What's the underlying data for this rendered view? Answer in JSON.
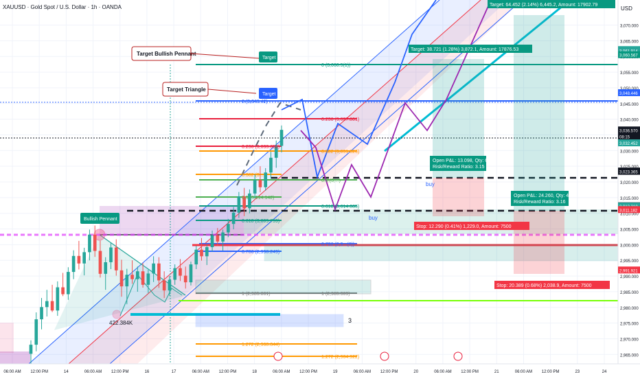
{
  "header": {
    "title": "XAUUSD · Gold Spot / U.S. Dollar · 1h · OANDA",
    "currency": "USD"
  },
  "price_axis": {
    "ticks": [
      "3,070.000",
      "3,065.000",
      "3,060.000",
      "3,055.000",
      "3,050.000",
      "3,045.000",
      "3,040.000",
      "3,035.000",
      "3,030.000",
      "3,025.000",
      "3,020.000",
      "3,015.000",
      "3,010.000",
      "3,005.000",
      "3,000.000",
      "2,995.000",
      "2,990.000",
      "2,985.000",
      "2,980.000",
      "2,975.000",
      "2,970.000",
      "2,965.000"
    ],
    "markers": [
      {
        "price": "3,062.193",
        "color": "#26a69a"
      },
      {
        "price": "3,061.914",
        "color": "#26a69a"
      },
      {
        "price": "3,060.567",
        "color": "#089981"
      },
      {
        "price": "3,048.446",
        "color": "#2962ff"
      },
      {
        "price": "3,036.570",
        "color": "#131722"
      },
      {
        "price": "08:15",
        "color": "#131722"
      },
      {
        "price": "3,032.452",
        "color": "#26a69a"
      },
      {
        "price": "3,023.472",
        "color": "#131722"
      },
      {
        "price": "3,023.365",
        "color": "#131722"
      },
      {
        "price": "3,012.392",
        "color": "#131722"
      },
      {
        "price": "3,012.310",
        "color": "#26a69a"
      },
      {
        "price": "3,011.182",
        "color": "#f23645"
      },
      {
        "price": "2,991.921",
        "color": "#f23645"
      }
    ]
  },
  "time_axis": {
    "labels": [
      "06:00 AM",
      "12:00 PM",
      "14",
      "06:00 AM",
      "12:00 PM",
      "16",
      "17",
      "06:00 AM",
      "12:00 PM",
      "18",
      "06:00 AM",
      "12:00 PM",
      "19",
      "06:00 AM",
      "12:00 PM",
      "20",
      "06:00 AM",
      "12:00 PM",
      "21",
      "06:00 AM",
      "12:00 PM",
      "23",
      "24"
    ]
  },
  "annotations": {
    "target_bullish_pennant": "Target Bullish Pennant",
    "target_triangle": "Target Triangle",
    "target_tag_1": "Target",
    "target_tag_2": "Target",
    "bullish_pennant": "Bullish Pennant",
    "volume_label": "422.384K",
    "buy_1": "buy",
    "buy_2": "buy",
    "count_label": "3"
  },
  "fib_labels": {
    "f0_top": "0 (3,060.5(1))",
    "f0_mid": "0 (3,048.42)",
    "f0236_a": "0.236 (3,037.801)",
    "f0236_b": "0.236 (3,033.658)",
    "f0382_a": "0.382 (3,031.826)",
    "f0382_b": "0.382 (3,...",
    "f05_a": "0.5 (3,...)",
    "f05_b": "0.5 (3,014.142)",
    "f0618_a": "0.618 (3,009.759)",
    "f0618_b": "0.618 (3,014.085)",
    "f0786_a": "0.786 (2,9...(6))",
    "f0786_b": "0.786 (2,998.249)",
    "f1_a": "1 (2,985.861)",
    "f1_b": "1 (2,985.369)",
    "f1272_a": "1.272 (2,968.844)",
    "f1272_b": "1.272 (2,964.922)"
  },
  "positions": {
    "target_a": "Target: 64.452 (2.14%) 6,445.2, Amount: 17902.79",
    "target_b": "Target: 38.721 (1.28%) 3,872.1, Amount: 17876.53",
    "open_a_l1": "Open P&L: 13.098, Qty: 67",
    "open_a_l2": "Risk/Reward Ratio: 3.15",
    "open_b_l1": "Open P&L: 24.260, Qty: 40",
    "open_b_l2": "Risk/Reward Ratio: 3.16",
    "stop_a": "Stop: 12.290 (0.41%) 1,229.0, Amount: 7500",
    "stop_b": "Stop: 20.389 (0.68%) 2,038.9, Amount: 7500"
  },
  "colors": {
    "up": "#26a69a",
    "down": "#ef5350",
    "channel_blue": "#2962ff",
    "channel_red": "#f23645",
    "fib_red": "#e91e3c",
    "fib_orange": "#ff9800",
    "fib_green": "#4caf50",
    "teal": "#089981",
    "purple": "#9c27b0"
  },
  "chart_data": {
    "type": "candlestick",
    "symbol": "XAUUSD",
    "timeframe": "1h",
    "ylim": [
      2962,
      3078
    ],
    "candles": [
      [
        2965.2,
        2969.5,
        2962.0,
        2968.1
      ],
      [
        2968.1,
        2978.4,
        2966.0,
        2976.2
      ],
      [
        2976.2,
        2983.0,
        2973.0,
        2980.1
      ],
      [
        2980.1,
        2985.6,
        2977.1,
        2982.0
      ],
      [
        2982.0,
        2987.2,
        2978.5,
        2979.0
      ],
      [
        2979.0,
        2988.3,
        2977.3,
        2986.4
      ],
      [
        2986.4,
        2991.0,
        2983.6,
        2984.2
      ],
      [
        2984.2,
        2992.8,
        2982.4,
        2991.3
      ],
      [
        2991.3,
        2998.2,
        2989.0,
        2996.4
      ],
      [
        2996.4,
        3001.2,
        2992.1,
        2994.0
      ],
      [
        2994.0,
        2999.0,
        2990.2,
        2997.6
      ],
      [
        2997.6,
        3004.8,
        2995.0,
        3003.2
      ],
      [
        3003.2,
        3006.1,
        2996.1,
        2998.0
      ],
      [
        2998.0,
        3001.3,
        2989.5,
        2990.7
      ],
      [
        2990.7,
        2996.0,
        2985.6,
        2994.4
      ],
      [
        2994.4,
        3000.6,
        2992.2,
        2999.1
      ],
      [
        2999.1,
        3001.7,
        2990.1,
        2991.8
      ],
      [
        2991.8,
        2995.2,
        2983.4,
        2986.7
      ],
      [
        2986.7,
        2992.3,
        2981.0,
        2990.4
      ],
      [
        2990.4,
        2995.0,
        2987.5,
        2989.0
      ],
      [
        2989.0,
        2993.0,
        2985.0,
        2991.5
      ],
      [
        2991.5,
        2994.2,
        2986.3,
        2987.2
      ],
      [
        2987.2,
        2992.0,
        2984.6,
        2990.8
      ],
      [
        2990.8,
        2996.3,
        2988.1,
        2994.0
      ],
      [
        2994.0,
        2996.0,
        2986.2,
        2988.6
      ],
      [
        2988.6,
        2991.5,
        2983.0,
        2985.4
      ],
      [
        2985.4,
        2989.9,
        2983.7,
        2988.8
      ],
      [
        2988.8,
        2993.7,
        2987.2,
        2992.5
      ],
      [
        2992.5,
        2995.4,
        2988.4,
        2990.1
      ],
      [
        2990.1,
        2993.0,
        2986.0,
        2988.0
      ],
      [
        2988.0,
        2994.6,
        2987.0,
        2993.7
      ],
      [
        2993.7,
        2999.6,
        2992.2,
        2998.4
      ],
      [
        2998.4,
        3002.1,
        2994.9,
        2996.3
      ],
      [
        2996.3,
        3000.0,
        2993.5,
        2999.2
      ],
      [
        2999.2,
        3004.5,
        2997.8,
        3003.0
      ],
      [
        3003.0,
        3005.3,
        2999.6,
        3001.0
      ],
      [
        3001.0,
        3004.8,
        2998.1,
        3003.9
      ],
      [
        3003.9,
        3008.2,
        3002.4,
        3006.6
      ],
      [
        3006.6,
        3012.0,
        3004.9,
        3010.2
      ],
      [
        3010.2,
        3016.8,
        3008.5,
        3015.4
      ],
      [
        3015.4,
        3018.1,
        3009.1,
        3011.6
      ],
      [
        3011.6,
        3017.6,
        3010.0,
        3016.3
      ],
      [
        3016.3,
        3022.4,
        3014.8,
        3020.6
      ],
      [
        3020.6,
        3025.0,
        3016.7,
        3018.3
      ],
      [
        3018.3,
        3024.4,
        3017.2,
        3023.0
      ],
      [
        3023.0,
        3029.6,
        3021.0,
        3027.7
      ],
      [
        3027.7,
        3033.2,
        3024.5,
        3031.5
      ],
      [
        3031.5,
        3038.0,
        3029.4,
        3036.6
      ]
    ]
  }
}
